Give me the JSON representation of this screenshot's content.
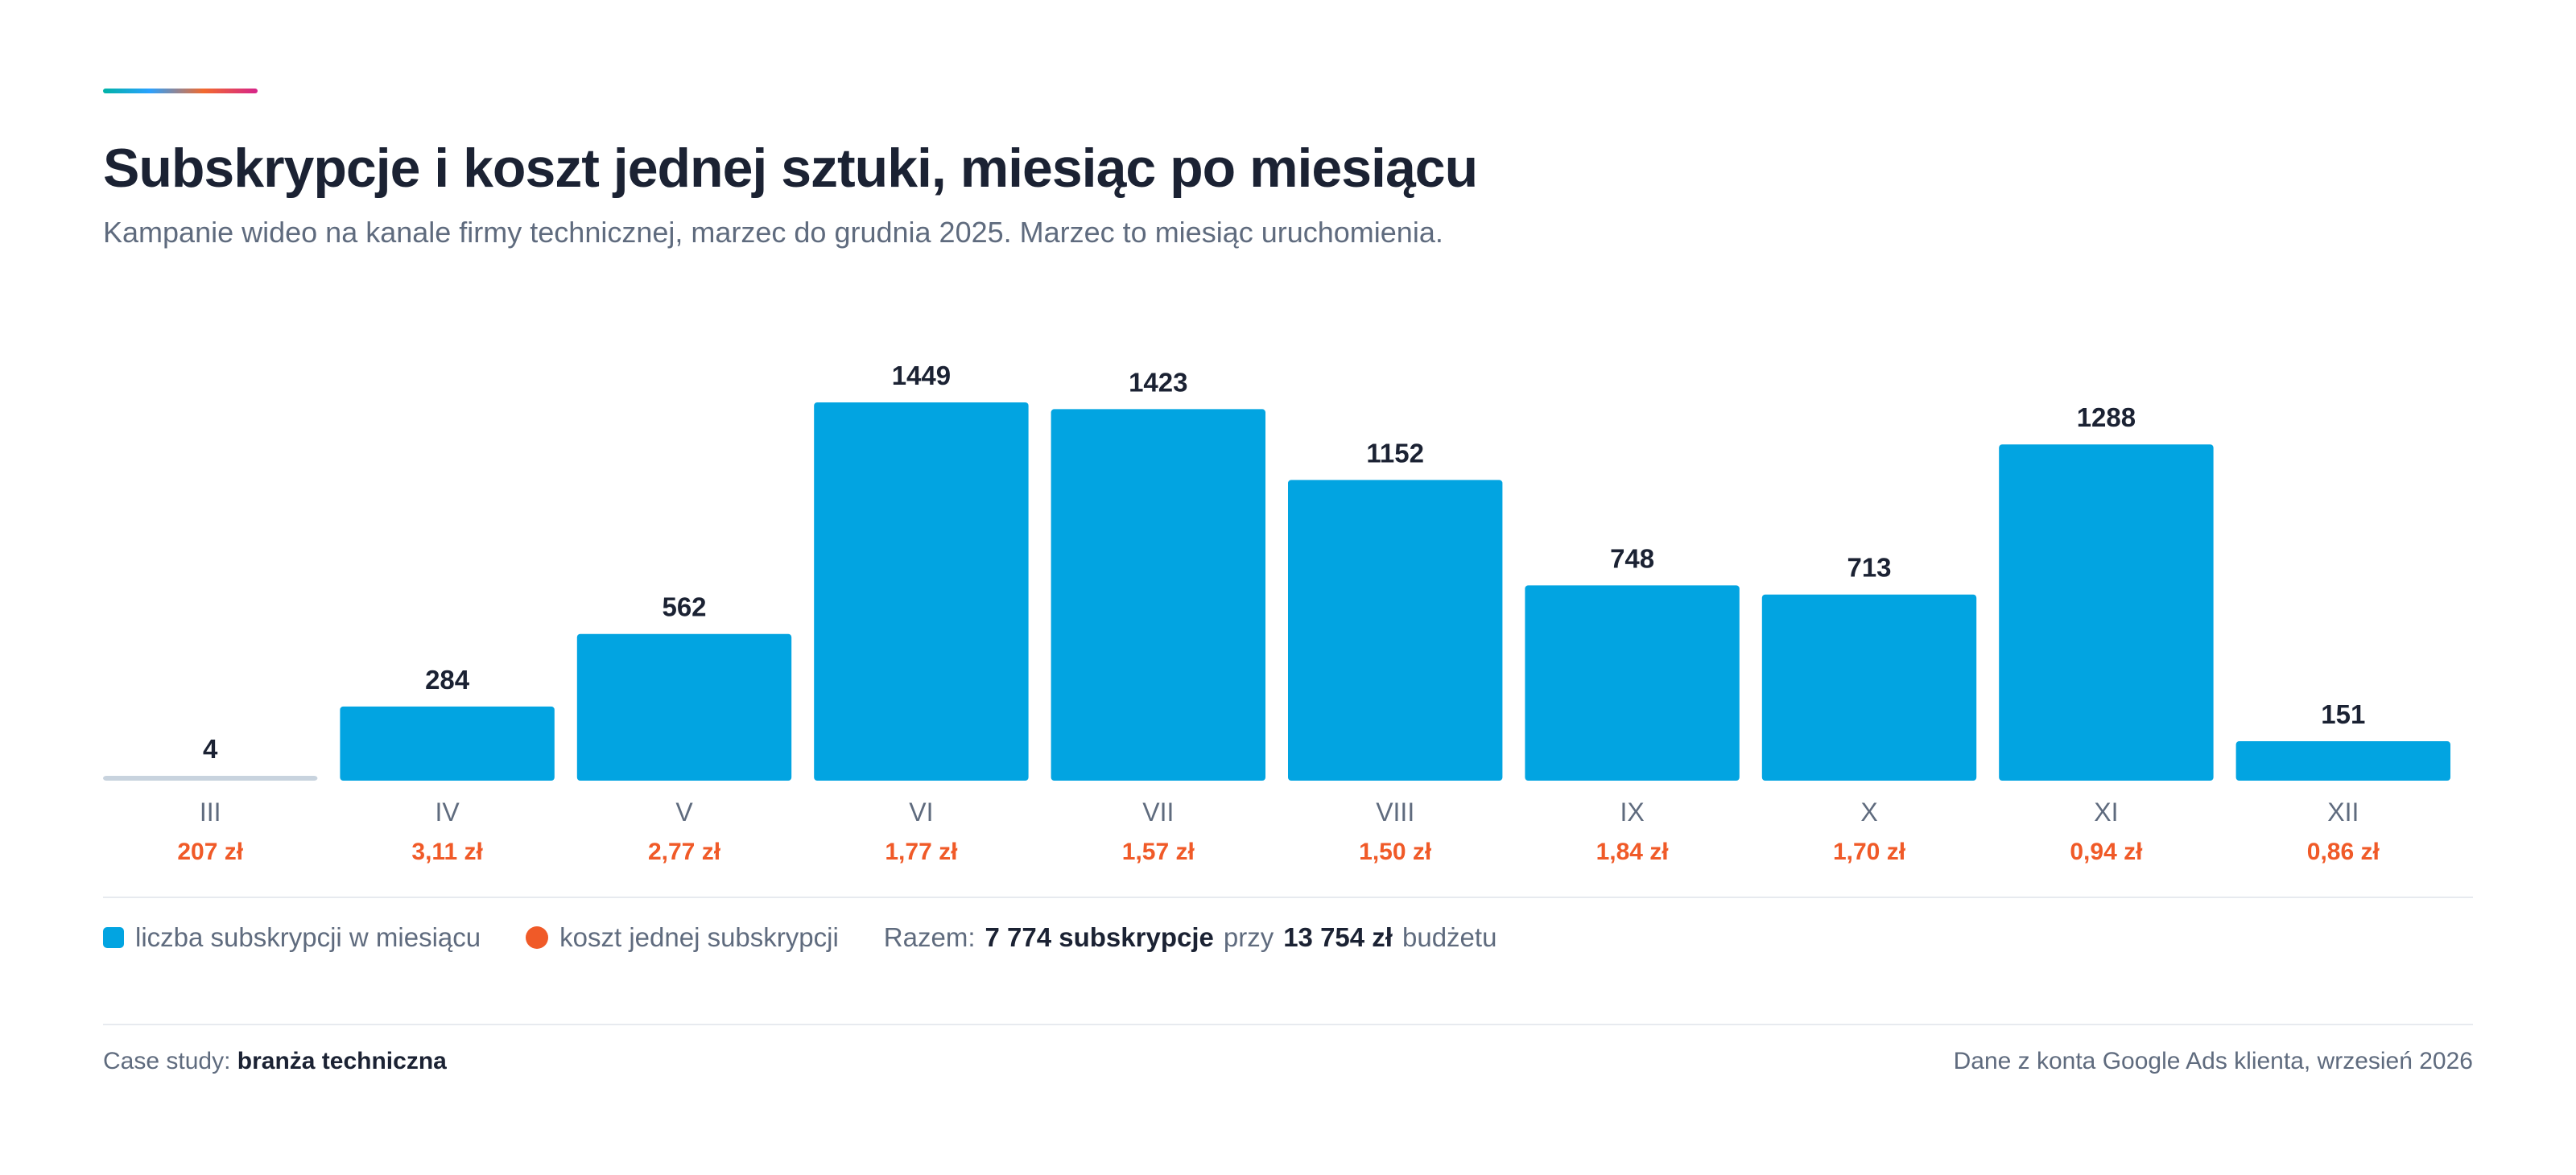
{
  "colors": {
    "bar": "#02a4e1",
    "bar_baseline": "#c8d3de",
    "cost": "#f05a28",
    "text_dark": "#1b2233",
    "text_muted": "#5f6b7e"
  },
  "header": {
    "title": "Subskrypcje i koszt jednej sztuki, miesiąc po miesiącu",
    "subtitle": "Kampanie wideo na kanale firmy technicznej, marzec do grudnia 2025. Marzec to miesiąc uruchomienia."
  },
  "chart_data": {
    "type": "bar",
    "categories": [
      "III",
      "IV",
      "V",
      "VI",
      "VII",
      "VIII",
      "IX",
      "X",
      "XI",
      "XII"
    ],
    "series": [
      {
        "name": "liczba subskrypcji w miesiącu",
        "values": [
          4,
          284,
          562,
          1449,
          1423,
          1152,
          748,
          713,
          1288,
          151
        ]
      }
    ],
    "cost_labels": [
      "207 zł",
      "3,11 zł",
      "2,77 zł",
      "1,77 zł",
      "1,57 zł",
      "1,50 zł",
      "1,84 zł",
      "1,70 zł",
      "0,94 zł",
      "0,86 zł"
    ],
    "cost_values": [
      207,
      3.11,
      2.77,
      1.77,
      1.57,
      1.5,
      1.84,
      1.7,
      0.94,
      0.86
    ],
    "cost_series_name": "koszt jednej subskrypcji",
    "grid": false
  },
  "legend": {
    "bars_label": "liczba subskrypcji w miesiącu",
    "cost_label": "koszt jednej subskrypcji",
    "total_prefix": "Razem:",
    "total_subs": "7 774 subskrypcje",
    "total_mid": "przy",
    "total_budget": "13 754 zł",
    "total_suffix": "budżetu"
  },
  "footer": {
    "case_prefix": "Case study:",
    "case_value": "branża techniczna",
    "source": "Dane z konta Google Ads klienta, wrzesień 2026"
  }
}
